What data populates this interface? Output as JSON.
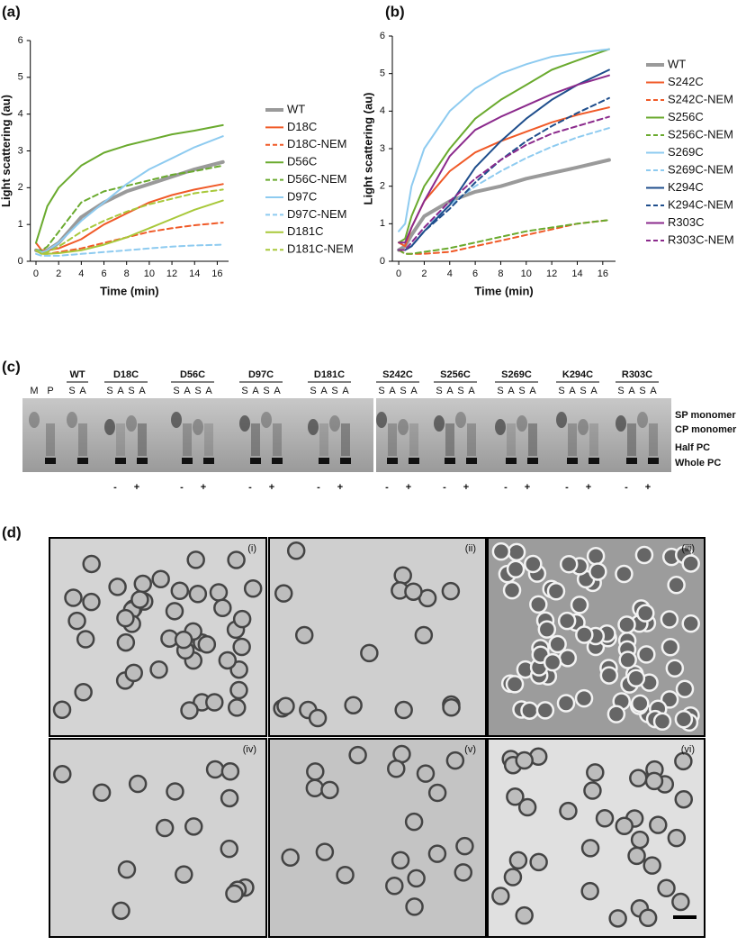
{
  "chart_data": [
    {
      "type": "line",
      "label": "(a)",
      "xlabel": "Time (min)",
      "ylabel": "Light scattering (au)",
      "x": [
        0,
        0.5,
        1,
        2,
        4,
        6,
        8,
        10,
        12,
        14,
        16.5
      ],
      "xlim": [
        -0.5,
        17
      ],
      "xticks": [
        0,
        2,
        4,
        6,
        8,
        10,
        12,
        14,
        16
      ],
      "ylim": [
        0,
        6
      ],
      "yticks": [
        0,
        1,
        2,
        3,
        4,
        5,
        6
      ],
      "series": [
        {
          "name": "WT",
          "color": "#9a9a9a",
          "dashed": false,
          "linewidth": 4,
          "values": [
            0.3,
            0.25,
            0.3,
            0.5,
            1.2,
            1.6,
            1.9,
            2.1,
            2.3,
            2.5,
            2.7
          ]
        },
        {
          "name": "D18C",
          "color": "#f05a28",
          "dashed": false,
          "linewidth": 2,
          "values": [
            0.5,
            0.3,
            0.3,
            0.35,
            0.6,
            1.0,
            1.3,
            1.6,
            1.8,
            1.95,
            2.1
          ]
        },
        {
          "name": "D18C-NEM",
          "color": "#f05a28",
          "dashed": true,
          "linewidth": 2,
          "values": [
            0.3,
            0.2,
            0.2,
            0.25,
            0.35,
            0.5,
            0.65,
            0.8,
            0.9,
            0.98,
            1.05
          ]
        },
        {
          "name": "D56C",
          "color": "#6aaa2e",
          "dashed": false,
          "linewidth": 2,
          "values": [
            0.5,
            1.0,
            1.5,
            2.0,
            2.6,
            2.95,
            3.15,
            3.3,
            3.45,
            3.55,
            3.7
          ]
        },
        {
          "name": "D56C-NEM",
          "color": "#6aaa2e",
          "dashed": true,
          "linewidth": 2,
          "values": [
            0.3,
            0.3,
            0.4,
            0.8,
            1.6,
            1.9,
            2.05,
            2.2,
            2.35,
            2.45,
            2.6
          ]
        },
        {
          "name": "D97C",
          "color": "#8ecbf0",
          "dashed": false,
          "linewidth": 2,
          "values": [
            0.3,
            0.25,
            0.3,
            0.5,
            1.1,
            1.6,
            2.1,
            2.5,
            2.8,
            3.1,
            3.4
          ]
        },
        {
          "name": "D97C-NEM",
          "color": "#8ecbf0",
          "dashed": true,
          "linewidth": 2,
          "values": [
            0.2,
            0.15,
            0.15,
            0.15,
            0.2,
            0.25,
            0.3,
            0.35,
            0.4,
            0.43,
            0.45
          ]
        },
        {
          "name": "D181C",
          "color": "#a8c83a",
          "dashed": false,
          "linewidth": 2,
          "values": [
            0.3,
            0.2,
            0.2,
            0.22,
            0.3,
            0.45,
            0.65,
            0.9,
            1.15,
            1.4,
            1.65
          ]
        },
        {
          "name": "D181C-NEM",
          "color": "#a8c83a",
          "dashed": true,
          "linewidth": 2,
          "values": [
            0.3,
            0.2,
            0.25,
            0.4,
            0.8,
            1.1,
            1.35,
            1.55,
            1.7,
            1.85,
            1.95
          ]
        }
      ]
    },
    {
      "type": "line",
      "label": "(b)",
      "xlabel": "Time (min)",
      "ylabel": "Light scattering (au)",
      "x": [
        0,
        0.5,
        1,
        2,
        4,
        6,
        8,
        10,
        12,
        14,
        16.5
      ],
      "xlim": [
        -0.5,
        17
      ],
      "xticks": [
        0,
        2,
        4,
        6,
        8,
        10,
        12,
        14,
        16
      ],
      "ylim": [
        0,
        6
      ],
      "yticks": [
        0,
        1,
        2,
        3,
        4,
        5,
        6
      ],
      "series": [
        {
          "name": "WT",
          "color": "#9a9a9a",
          "dashed": false,
          "linewidth": 4,
          "values": [
            0.3,
            0.4,
            0.7,
            1.2,
            1.6,
            1.85,
            2.0,
            2.2,
            2.35,
            2.5,
            2.7
          ]
        },
        {
          "name": "S242C",
          "color": "#f05a28",
          "dashed": false,
          "linewidth": 2,
          "values": [
            0.5,
            0.4,
            0.9,
            1.6,
            2.4,
            2.9,
            3.2,
            3.45,
            3.7,
            3.9,
            4.1
          ]
        },
        {
          "name": "S242C-NEM",
          "color": "#f05a28",
          "dashed": true,
          "linewidth": 2,
          "values": [
            0.3,
            0.2,
            0.2,
            0.2,
            0.25,
            0.4,
            0.55,
            0.7,
            0.85,
            1.0,
            1.1
          ]
        },
        {
          "name": "S256C",
          "color": "#6aaa2e",
          "dashed": false,
          "linewidth": 2,
          "values": [
            0.5,
            0.6,
            1.2,
            2.0,
            3.0,
            3.8,
            4.3,
            4.7,
            5.1,
            5.35,
            5.65
          ]
        },
        {
          "name": "S256C-NEM",
          "color": "#6aaa2e",
          "dashed": true,
          "linewidth": 2,
          "values": [
            0.3,
            0.2,
            0.2,
            0.25,
            0.35,
            0.5,
            0.65,
            0.8,
            0.9,
            1.0,
            1.1
          ]
        },
        {
          "name": "S269C",
          "color": "#8ecbf0",
          "dashed": false,
          "linewidth": 2,
          "values": [
            0.8,
            1.0,
            2.0,
            3.0,
            4.0,
            4.6,
            5.0,
            5.25,
            5.45,
            5.55,
            5.65
          ]
        },
        {
          "name": "S269C-NEM",
          "color": "#8ecbf0",
          "dashed": true,
          "linewidth": 2,
          "values": [
            0.3,
            0.3,
            0.5,
            0.9,
            1.5,
            2.0,
            2.4,
            2.75,
            3.05,
            3.3,
            3.55
          ]
        },
        {
          "name": "K294C",
          "color": "#1f4e8c",
          "dashed": false,
          "linewidth": 2,
          "values": [
            0.3,
            0.3,
            0.4,
            0.8,
            1.5,
            2.5,
            3.2,
            3.8,
            4.3,
            4.7,
            5.1
          ]
        },
        {
          "name": "K294C-NEM",
          "color": "#1f4e8c",
          "dashed": true,
          "linewidth": 2,
          "values": [
            0.3,
            0.3,
            0.4,
            0.8,
            1.4,
            2.1,
            2.7,
            3.2,
            3.6,
            3.95,
            4.35
          ]
        },
        {
          "name": "R303C",
          "color": "#8b2a8c",
          "dashed": false,
          "linewidth": 2,
          "values": [
            0.5,
            0.5,
            0.9,
            1.6,
            2.8,
            3.5,
            3.85,
            4.15,
            4.45,
            4.7,
            4.95
          ]
        },
        {
          "name": "R303C-NEM",
          "color": "#8b2a8c",
          "dashed": true,
          "linewidth": 2,
          "values": [
            0.3,
            0.3,
            0.5,
            0.9,
            1.6,
            2.2,
            2.7,
            3.1,
            3.4,
            3.6,
            3.85
          ]
        }
      ]
    }
  ],
  "gel": {
    "label": "(c)",
    "marker_lanes": [
      "M",
      "P"
    ],
    "groups": [
      {
        "name": "WT",
        "lanes": [
          "S",
          "A"
        ],
        "treatment": []
      },
      {
        "name": "D18C",
        "lanes": [
          "S",
          "A",
          "S",
          "A"
        ],
        "treatment": [
          "-",
          "+"
        ]
      },
      {
        "name": "D56C",
        "lanes": [
          "S",
          "A",
          "S",
          "A"
        ],
        "treatment": [
          "-",
          "+"
        ]
      },
      {
        "name": "D97C",
        "lanes": [
          "S",
          "A",
          "S",
          "A"
        ],
        "treatment": [
          "-",
          "+"
        ]
      },
      {
        "name": "D181C",
        "lanes": [
          "S",
          "A",
          "S",
          "A"
        ],
        "treatment": [
          "-",
          "+"
        ]
      },
      {
        "name": "S242C",
        "lanes": [
          "S",
          "A",
          "S",
          "A"
        ],
        "treatment": [
          "-",
          "+"
        ]
      },
      {
        "name": "S256C",
        "lanes": [
          "S",
          "A",
          "S",
          "A"
        ],
        "treatment": [
          "-",
          "+"
        ]
      },
      {
        "name": "S269C",
        "lanes": [
          "S",
          "A",
          "S",
          "A"
        ],
        "treatment": [
          "-",
          "+"
        ]
      },
      {
        "name": "K294C",
        "lanes": [
          "S",
          "A",
          "S",
          "A"
        ],
        "treatment": [
          "-",
          "+"
        ]
      },
      {
        "name": "R303C",
        "lanes": [
          "S",
          "A",
          "S",
          "A"
        ],
        "treatment": [
          "-",
          "+"
        ]
      }
    ],
    "band_labels": [
      "SP monomer",
      "CP monomer",
      "Half PC",
      "Whole PC"
    ]
  },
  "micrographs": {
    "label": "(d)",
    "panels": [
      "(i)",
      "(ii)",
      "(iii)",
      "(iv)",
      "(v)",
      "(vi)"
    ]
  }
}
